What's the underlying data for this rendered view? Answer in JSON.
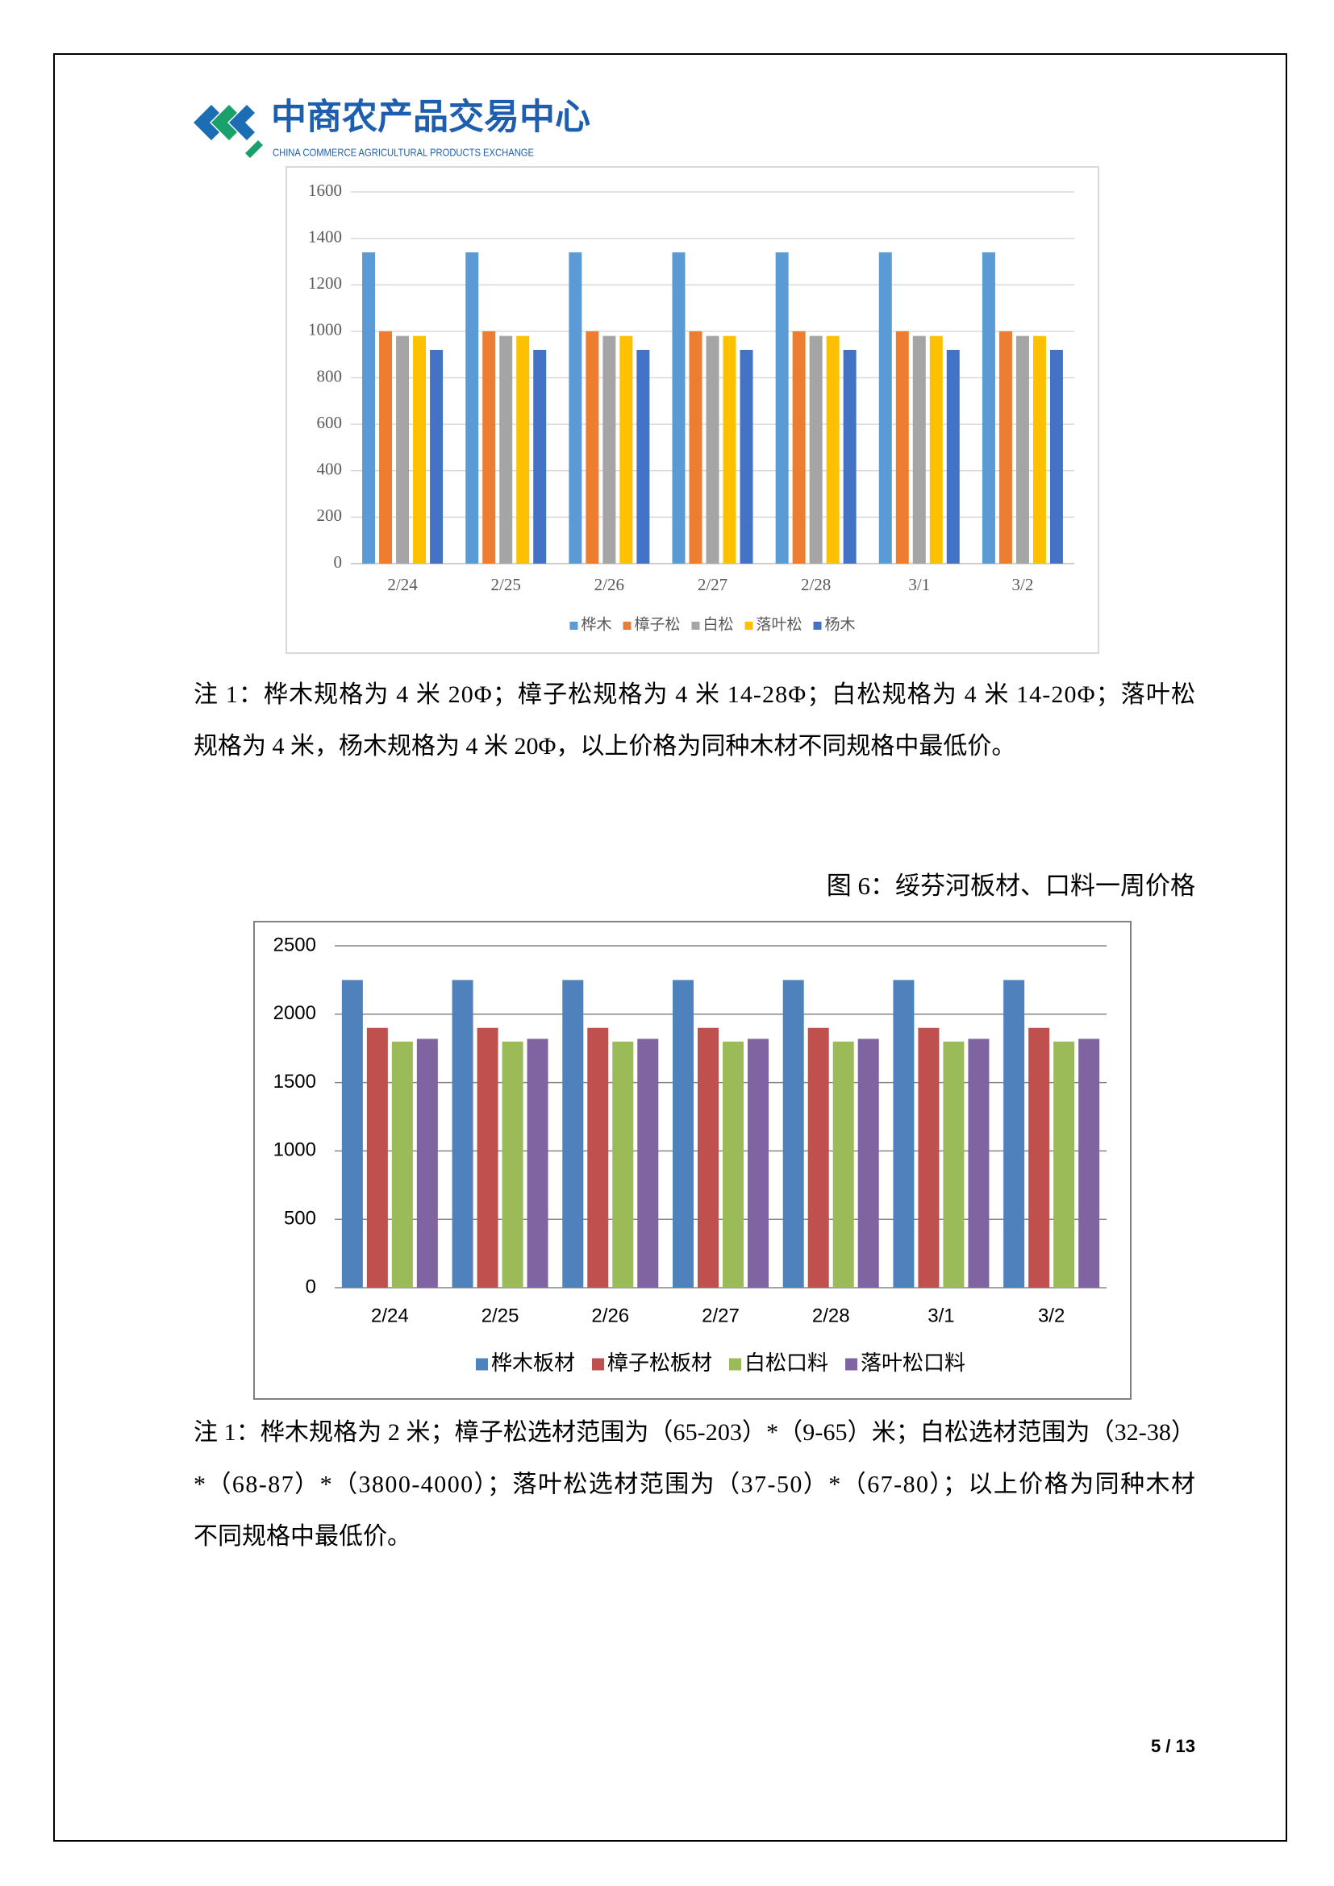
{
  "header": {
    "logo_title": "中商农产品交易中心",
    "logo_subtitle": "CHINA COMMERCE AGRICULTURAL PRODUCTS EXCHANGE"
  },
  "chart_data": [
    {
      "type": "bar",
      "categories": [
        "2/24",
        "2/25",
        "2/26",
        "2/27",
        "2/28",
        "3/1",
        "3/2"
      ],
      "series": [
        {
          "name": "桦木",
          "color": "#5b9bd5",
          "values": [
            1340,
            1340,
            1340,
            1340,
            1340,
            1340,
            1340
          ]
        },
        {
          "name": "樟子松",
          "color": "#ed7d31",
          "values": [
            1000,
            1000,
            1000,
            1000,
            1000,
            1000,
            1000
          ]
        },
        {
          "name": "白松",
          "color": "#a5a5a5",
          "values": [
            980,
            980,
            980,
            980,
            980,
            980,
            980
          ]
        },
        {
          "name": "落叶松",
          "color": "#ffc000",
          "values": [
            980,
            980,
            980,
            980,
            980,
            980,
            980
          ]
        },
        {
          "name": "杨木",
          "color": "#4472c4",
          "values": [
            920,
            920,
            920,
            920,
            920,
            920,
            920
          ]
        }
      ],
      "ylim": [
        0,
        1600
      ],
      "yticks": [
        0,
        200,
        400,
        600,
        800,
        1000,
        1200,
        1400,
        1600
      ],
      "grid": true,
      "legend": "bottom"
    },
    {
      "type": "bar",
      "categories": [
        "2/24",
        "2/25",
        "2/26",
        "2/27",
        "2/28",
        "3/1",
        "3/2"
      ],
      "series": [
        {
          "name": "桦木板材",
          "color": "#4f81bd",
          "values": [
            2250,
            2250,
            2250,
            2250,
            2250,
            2250,
            2250
          ]
        },
        {
          "name": "樟子松板材",
          "color": "#c0504d",
          "values": [
            1900,
            1900,
            1900,
            1900,
            1900,
            1900,
            1900
          ]
        },
        {
          "name": "白松口料",
          "color": "#9bbb59",
          "values": [
            1800,
            1800,
            1800,
            1800,
            1800,
            1800,
            1800
          ]
        },
        {
          "name": "落叶松口料",
          "color": "#8064a2",
          "values": [
            1820,
            1820,
            1820,
            1820,
            1820,
            1820,
            1820
          ]
        }
      ],
      "ylim": [
        0,
        2500
      ],
      "yticks": [
        0,
        500,
        1000,
        1500,
        2000,
        2500
      ],
      "grid": true,
      "legend": "bottom"
    }
  ],
  "note1": [
    "注 1：桦木规格为 4 米 20Φ；樟子松规格为 4 米 14-28Φ；白松规格为 4 米 14-20Φ；落叶松",
    "规格为 4 米，杨木规格为 4 米 20Φ，以上价格为同种木材不同规格中最低价。"
  ],
  "figure_caption": "图 6：绥芬河板材、口料一周价格",
  "note2": [
    "注 1：桦木规格为 2 米；樟子松选材范围为（65-203）*（9-65）米；白松选材范围为（32-38）",
    "*（68-87）*（3800-4000）；落叶松选材范围为（37-50）*（67-80）；以上价格为同种木材",
    "不同规格中最低价。"
  ],
  "page_number": "5 / 13"
}
